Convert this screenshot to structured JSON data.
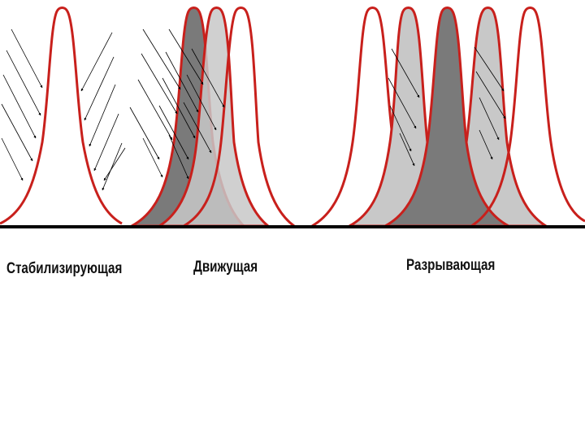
{
  "labels": {
    "stabilizing": "Стабилизирующая",
    "moving": "Движущая",
    "disruptive": "Разрывающая"
  },
  "colors": {
    "curve": "#c8201c",
    "baseline": "#000000",
    "fill_dark": "#7a7a7a",
    "fill_light": "#c8c8c8",
    "arrow": "#000000"
  }
}
